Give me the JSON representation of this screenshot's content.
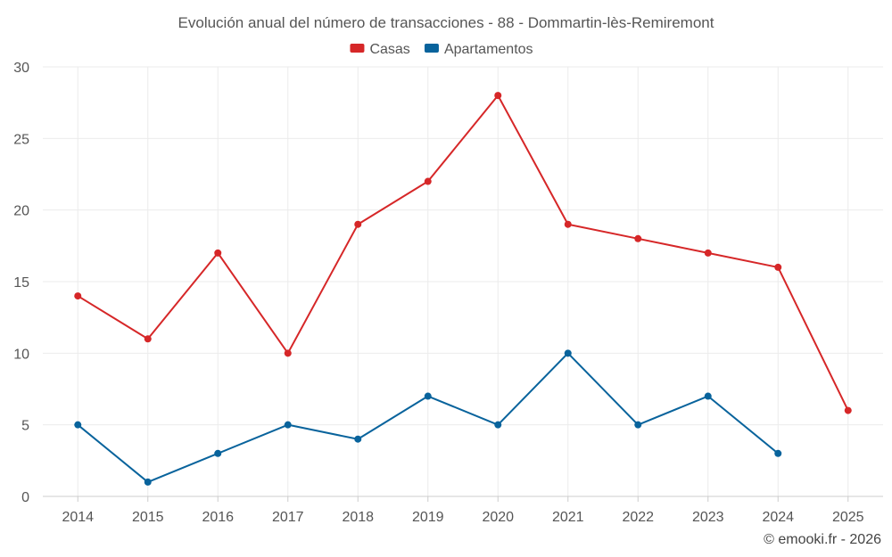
{
  "chart_data": {
    "type": "line",
    "title": "Evolución anual del número de transacciones - 88 - Dommartin-lès-Remiremont",
    "categories": [
      "2014",
      "2015",
      "2016",
      "2017",
      "2018",
      "2019",
      "2020",
      "2021",
      "2022",
      "2023",
      "2024",
      "2025"
    ],
    "series": [
      {
        "name": "Casas",
        "color": "#d62728",
        "values": [
          14,
          11,
          17,
          10,
          19,
          22,
          28,
          19,
          18,
          17,
          16,
          6
        ]
      },
      {
        "name": "Apartamentos",
        "color": "#08639c",
        "values": [
          5,
          1,
          3,
          5,
          4,
          7,
          5,
          10,
          5,
          7,
          3,
          null
        ]
      }
    ],
    "y_ticks": [
      0,
      5,
      10,
      15,
      20,
      25,
      30
    ],
    "ylim": [
      0,
      30
    ],
    "grid": true,
    "legend_position": "top-center"
  },
  "credit": "© emooki.fr - 2026"
}
